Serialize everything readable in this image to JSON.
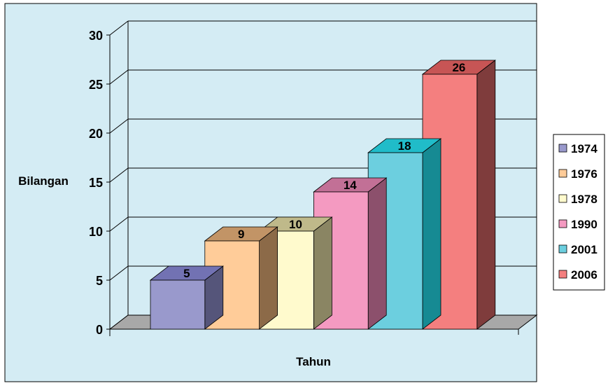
{
  "chart_data": {
    "type": "bar",
    "title": "",
    "xlabel": "Tahun",
    "ylabel": "Bilangan",
    "ylim": [
      0,
      30
    ],
    "yticks": [
      0,
      5,
      10,
      15,
      20,
      25,
      30
    ],
    "categories": [
      "1974",
      "1976",
      "1978",
      "1990",
      "2001",
      "2006"
    ],
    "values": [
      5,
      9,
      10,
      14,
      18,
      26
    ],
    "data_labels": [
      "5",
      "9",
      "10",
      "14",
      "18",
      "26"
    ],
    "legend_position": "right",
    "grid": true,
    "three_d": true
  },
  "colors": {
    "background": "#d4ecf4",
    "gridline": "#000000",
    "floor": "#a8a8a8",
    "bars": [
      "#9999cc",
      "#ffcc99",
      "#fffacd",
      "#f49ac1",
      "#6ccfdf",
      "#f47f7f"
    ],
    "tops": [
      "#7272b3",
      "#c29466",
      "#bfb98a",
      "#c27096",
      "#20bcc9",
      "#c75555"
    ],
    "sides": [
      "#55557a",
      "#8c6a48",
      "#8a8563",
      "#8c506c",
      "#168a93",
      "#7f3c3c"
    ]
  }
}
